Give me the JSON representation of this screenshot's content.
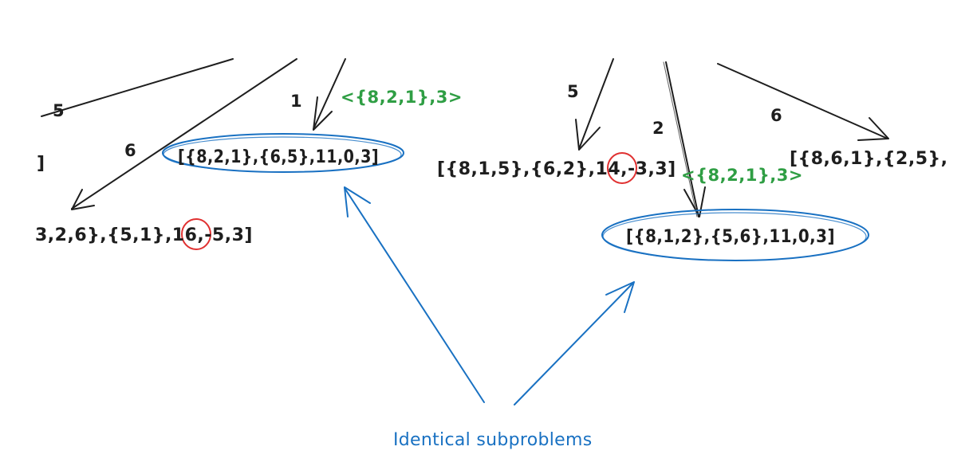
{
  "colors": {
    "ink": "#1e1e1e",
    "highlight_green": "#2f9e44",
    "annotation_blue": "#1971c2",
    "negative_circle_red": "#e03131"
  },
  "left_tree": {
    "edge_weights": {
      "w5": "5",
      "w6": "6",
      "w1": "1"
    },
    "edge_label_green": "<{8,2,1},3>",
    "cut_left_bracket": "]",
    "node_circled": "[{8,2,1},{6,5},11,0,3]",
    "node_bottom": {
      "before": "3,2,6},{5,1},16,",
      "negative": "-5",
      "after": ",3]"
    }
  },
  "right_tree": {
    "edge_weights": {
      "w5": "5",
      "w2": "2",
      "w6": "6"
    },
    "edge_label_green": "<{8,2,1},3>",
    "node_left": {
      "before": "[{8,1,5},{6,2},14,",
      "negative": "-3",
      "after": ",3]"
    },
    "node_circled": "[{8,1,2},{5,6},11,0,3]",
    "node_cut_right": "[{8,6,1},{2,5},"
  },
  "caption": "Identical subproblems"
}
